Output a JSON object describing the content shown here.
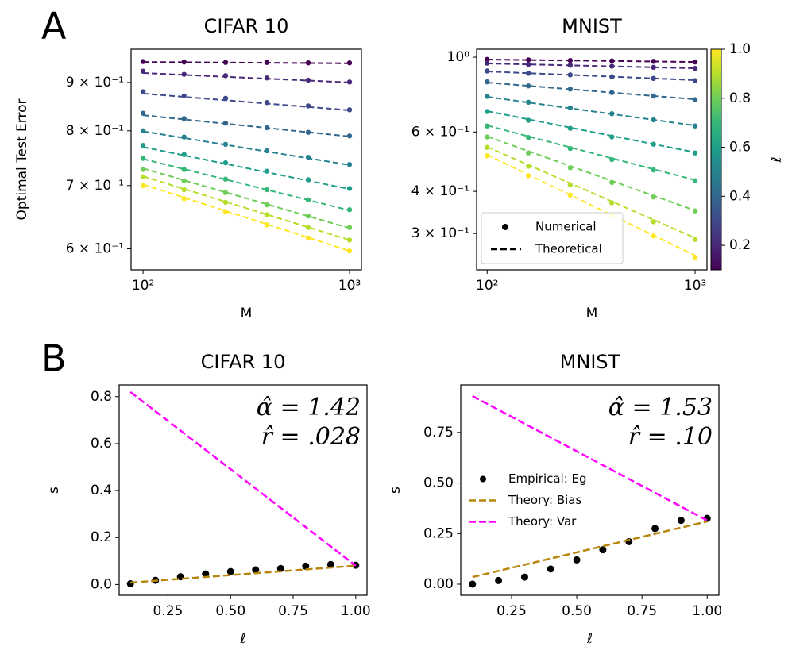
{
  "panel_labels": [
    "A",
    "B"
  ],
  "chart_data": [
    {
      "type": "scatter",
      "title": "CIFAR 10",
      "x_label": "M",
      "y_label": "Optimal Test Error",
      "xscale": "log",
      "yscale": "log",
      "xlim": [
        87.5,
        1142
      ],
      "ylim": [
        0.57,
        0.976
      ],
      "xticks": [
        {
          "value": 100,
          "label": "10²"
        },
        {
          "value": 1000,
          "label": "10³"
        }
      ],
      "yticks": [
        {
          "value": 0.6,
          "label": "6 × 10⁻¹"
        },
        {
          "value": 0.7,
          "label": "7 × 10⁻¹"
        },
        {
          "value": 0.8,
          "label": "8 × 10⁻¹"
        },
        {
          "value": 0.9,
          "label": "9 × 10⁻¹"
        }
      ],
      "x": [
        100,
        158,
        251,
        398,
        631,
        1000
      ],
      "theory_x": [
        100,
        1000
      ],
      "series": [
        {
          "ell": 0.1,
          "color": "#440154",
          "values": [
            0.947,
            0.946,
            0.945,
            0.945,
            0.944,
            0.944
          ],
          "theory": [
            0.946,
            0.943
          ]
        },
        {
          "ell": 0.2,
          "color": "#482878",
          "values": [
            0.925,
            0.918,
            0.915,
            0.91,
            0.905,
            0.901
          ],
          "theory": [
            0.921,
            0.9
          ]
        },
        {
          "ell": 0.3,
          "color": "#3e4989",
          "values": [
            0.88,
            0.871,
            0.866,
            0.857,
            0.85,
            0.842
          ],
          "theory": [
            0.876,
            0.841
          ]
        },
        {
          "ell": 0.4,
          "color": "#31688e",
          "values": [
            0.835,
            0.824,
            0.815,
            0.806,
            0.797,
            0.79
          ],
          "theory": [
            0.831,
            0.789
          ]
        },
        {
          "ell": 0.5,
          "color": "#26828e",
          "values": [
            0.8,
            0.788,
            0.774,
            0.762,
            0.75,
            0.737
          ],
          "theory": [
            0.799,
            0.736
          ]
        },
        {
          "ell": 0.6,
          "color": "#1f9e89",
          "values": [
            0.772,
            0.755,
            0.74,
            0.725,
            0.71,
            0.695
          ],
          "theory": [
            0.769,
            0.694
          ]
        },
        {
          "ell": 0.7,
          "color": "#35b779",
          "values": [
            0.748,
            0.728,
            0.711,
            0.693,
            0.676,
            0.66
          ],
          "theory": [
            0.747,
            0.659
          ]
        },
        {
          "ell": 0.8,
          "color": "#6ece58",
          "values": [
            0.728,
            0.708,
            0.688,
            0.668,
            0.65,
            0.632
          ],
          "theory": [
            0.73,
            0.631
          ]
        },
        {
          "ell": 0.9,
          "color": "#b5de2b",
          "values": [
            0.715,
            0.693,
            0.672,
            0.652,
            0.632,
            0.613
          ],
          "theory": [
            0.716,
            0.613
          ]
        },
        {
          "ell": 1.0,
          "color": "#fde725",
          "values": [
            0.7,
            0.678,
            0.657,
            0.636,
            0.616,
            0.597
          ],
          "theory": [
            0.702,
            0.597
          ]
        }
      ]
    },
    {
      "type": "scatter",
      "title": "MNIST",
      "x_label": "M",
      "xscale": "log",
      "yscale": "log",
      "xlim": [
        89,
        1141
      ],
      "ylim": [
        0.234,
        1.056
      ],
      "xticks": [
        {
          "value": 100,
          "label": "10²"
        },
        {
          "value": 1000,
          "label": "10³"
        }
      ],
      "yticks": [
        {
          "value": 0.3,
          "label": "3 × 10⁻¹"
        },
        {
          "value": 0.4,
          "label": "4 × 10⁻¹"
        },
        {
          "value": 0.6,
          "label": "6 × 10⁻¹"
        },
        {
          "value": 1,
          "label": "10⁰"
        }
      ],
      "x": [
        100,
        158,
        251,
        398,
        631,
        1000
      ],
      "theory_x": [
        100,
        1000
      ],
      "legend": {
        "items": [
          "Numerical",
          "Theoretical"
        ],
        "corner": "lower left"
      },
      "colorbar": {
        "label": "ℓ",
        "lim": [
          0.1,
          1.0
        ],
        "ticks": [
          0.2,
          0.4,
          0.6,
          0.8,
          {
            "value": 1.0,
            "label": "1.0"
          }
        ]
      },
      "series": [
        {
          "ell": 0.1,
          "color": "#440154",
          "values": [
            0.985,
            0.982,
            0.978,
            0.975,
            0.972,
            0.968
          ],
          "theory": [
            0.984,
            0.968
          ]
        },
        {
          "ell": 0.2,
          "color": "#482878",
          "values": [
            0.96,
            0.952,
            0.946,
            0.94,
            0.933,
            0.926
          ],
          "theory": [
            0.958,
            0.927
          ]
        },
        {
          "ell": 0.3,
          "color": "#3e4989",
          "values": [
            0.91,
            0.896,
            0.886,
            0.875,
            0.865,
            0.852
          ],
          "theory": [
            0.907,
            0.855
          ]
        },
        {
          "ell": 0.4,
          "color": "#31688e",
          "values": [
            0.845,
            0.822,
            0.804,
            0.785,
            0.767,
            0.748
          ],
          "theory": [
            0.841,
            0.75
          ]
        },
        {
          "ell": 0.5,
          "color": "#26828e",
          "values": [
            0.765,
            0.735,
            0.707,
            0.68,
            0.652,
            0.625
          ],
          "theory": [
            0.763,
            0.627
          ]
        },
        {
          "ell": 0.6,
          "color": "#1f9e89",
          "values": [
            0.69,
            0.65,
            0.615,
            0.58,
            0.552,
            0.52
          ],
          "theory": [
            0.692,
            0.522
          ]
        },
        {
          "ell": 0.7,
          "color": "#35b779",
          "values": [
            0.625,
            0.578,
            0.536,
            0.497,
            0.463,
            0.43
          ],
          "theory": [
            0.627,
            0.432
          ]
        },
        {
          "ell": 0.8,
          "color": "#6ece58",
          "values": [
            0.58,
            0.52,
            0.47,
            0.425,
            0.385,
            0.35
          ],
          "theory": [
            0.582,
            0.351
          ]
        },
        {
          "ell": 0.9,
          "color": "#b5de2b",
          "values": [
            0.54,
            0.475,
            0.418,
            0.37,
            0.325,
            0.288
          ],
          "theory": [
            0.542,
            0.291
          ]
        },
        {
          "ell": 1.0,
          "color": "#fde725",
          "values": [
            0.51,
            0.445,
            0.39,
            0.34,
            0.295,
            0.255
          ],
          "theory": [
            0.514,
            0.258
          ]
        }
      ]
    },
    {
      "type": "line",
      "title": "CIFAR 10",
      "x_label": "ℓ",
      "y_label": "s",
      "xlim": [
        0.055,
        1.045
      ],
      "ylim": [
        -0.046,
        0.85
      ],
      "xticks": [
        0.25,
        {
          "value": 0.5,
          "label": "0.50"
        },
        0.75,
        {
          "value": 1,
          "label": "1.00"
        }
      ],
      "yticks": [
        {
          "value": 0,
          "label": "0.0"
        },
        0.2,
        0.4,
        0.6,
        0.8
      ],
      "annotations": [
        "α̂ = 1.42",
        "r̂ = .028"
      ],
      "x": [
        0.1,
        0.2,
        0.3,
        0.4,
        0.5,
        0.6,
        0.7,
        0.8,
        0.9,
        1.0
      ],
      "series": [
        {
          "kind": "dots",
          "color": "#000000",
          "values": [
            0.003,
            0.018,
            0.033,
            0.045,
            0.055,
            0.062,
            0.068,
            0.078,
            0.085,
            0.082
          ]
        },
        {
          "kind": "dashed",
          "color": "#b8860b",
          "x": [
            0.1,
            1.0
          ],
          "values": [
            0.008,
            0.08
          ]
        },
        {
          "kind": "dashed",
          "color": "#ff00ff",
          "x": [
            0.1,
            1.0
          ],
          "values": [
            0.82,
            0.08
          ]
        }
      ]
    },
    {
      "type": "line",
      "title": "MNIST",
      "x_label": "ℓ",
      "y_label": "s",
      "xlim": [
        0.055,
        1.045
      ],
      "ylim": [
        -0.055,
        0.985
      ],
      "xticks": [
        0.25,
        {
          "value": 0.5,
          "label": "0.50"
        },
        0.75,
        {
          "value": 1,
          "label": "1.00"
        }
      ],
      "yticks": [
        {
          "value": 0,
          "label": "0.00"
        },
        0.25,
        {
          "value": 0.5,
          "label": "0.50"
        },
        0.75
      ],
      "annotations": [
        "α̂ = 1.53",
        "r̂ = .10"
      ],
      "legend": {
        "corner": "center left"
      },
      "x": [
        0.1,
        0.2,
        0.3,
        0.4,
        0.5,
        0.6,
        0.7,
        0.8,
        0.9,
        1.0
      ],
      "series": [
        {
          "name": "Empirical: Eg",
          "kind": "dots",
          "color": "#000000",
          "values": [
            0.0,
            0.018,
            0.035,
            0.075,
            0.12,
            0.17,
            0.21,
            0.275,
            0.315,
            0.325
          ]
        },
        {
          "name": "Theory: Bias",
          "kind": "dashed",
          "color": "#b8860b",
          "x": [
            0.1,
            1.0
          ],
          "values": [
            0.035,
            0.31
          ]
        },
        {
          "name": "Theory: Var",
          "kind": "dashed",
          "color": "#ff00ff",
          "x": [
            0.1,
            1.0
          ],
          "values": [
            0.93,
            0.315
          ]
        }
      ]
    }
  ]
}
